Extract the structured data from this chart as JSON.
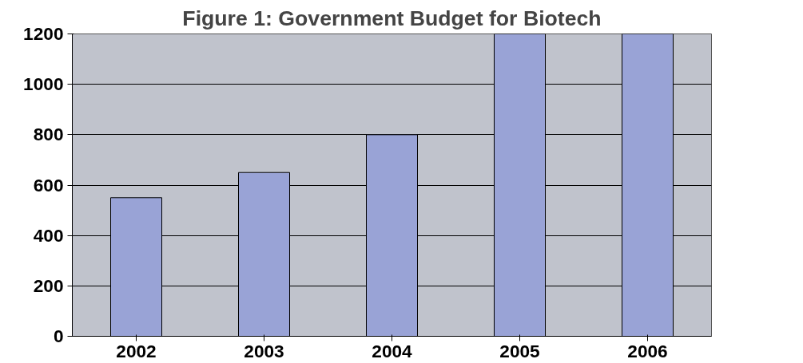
{
  "chart_data": {
    "type": "bar",
    "title": "Figure 1: Government Budget for Biotech",
    "categories": [
      "2002",
      "2003",
      "2004",
      "2005",
      "2006"
    ],
    "values": [
      550,
      650,
      800,
      1200,
      1200
    ],
    "color": "#99a3d6",
    "ylim": [
      0,
      1200
    ],
    "yticks": [
      0,
      200,
      400,
      600,
      800,
      1000,
      1200
    ],
    "grid": "y"
  }
}
